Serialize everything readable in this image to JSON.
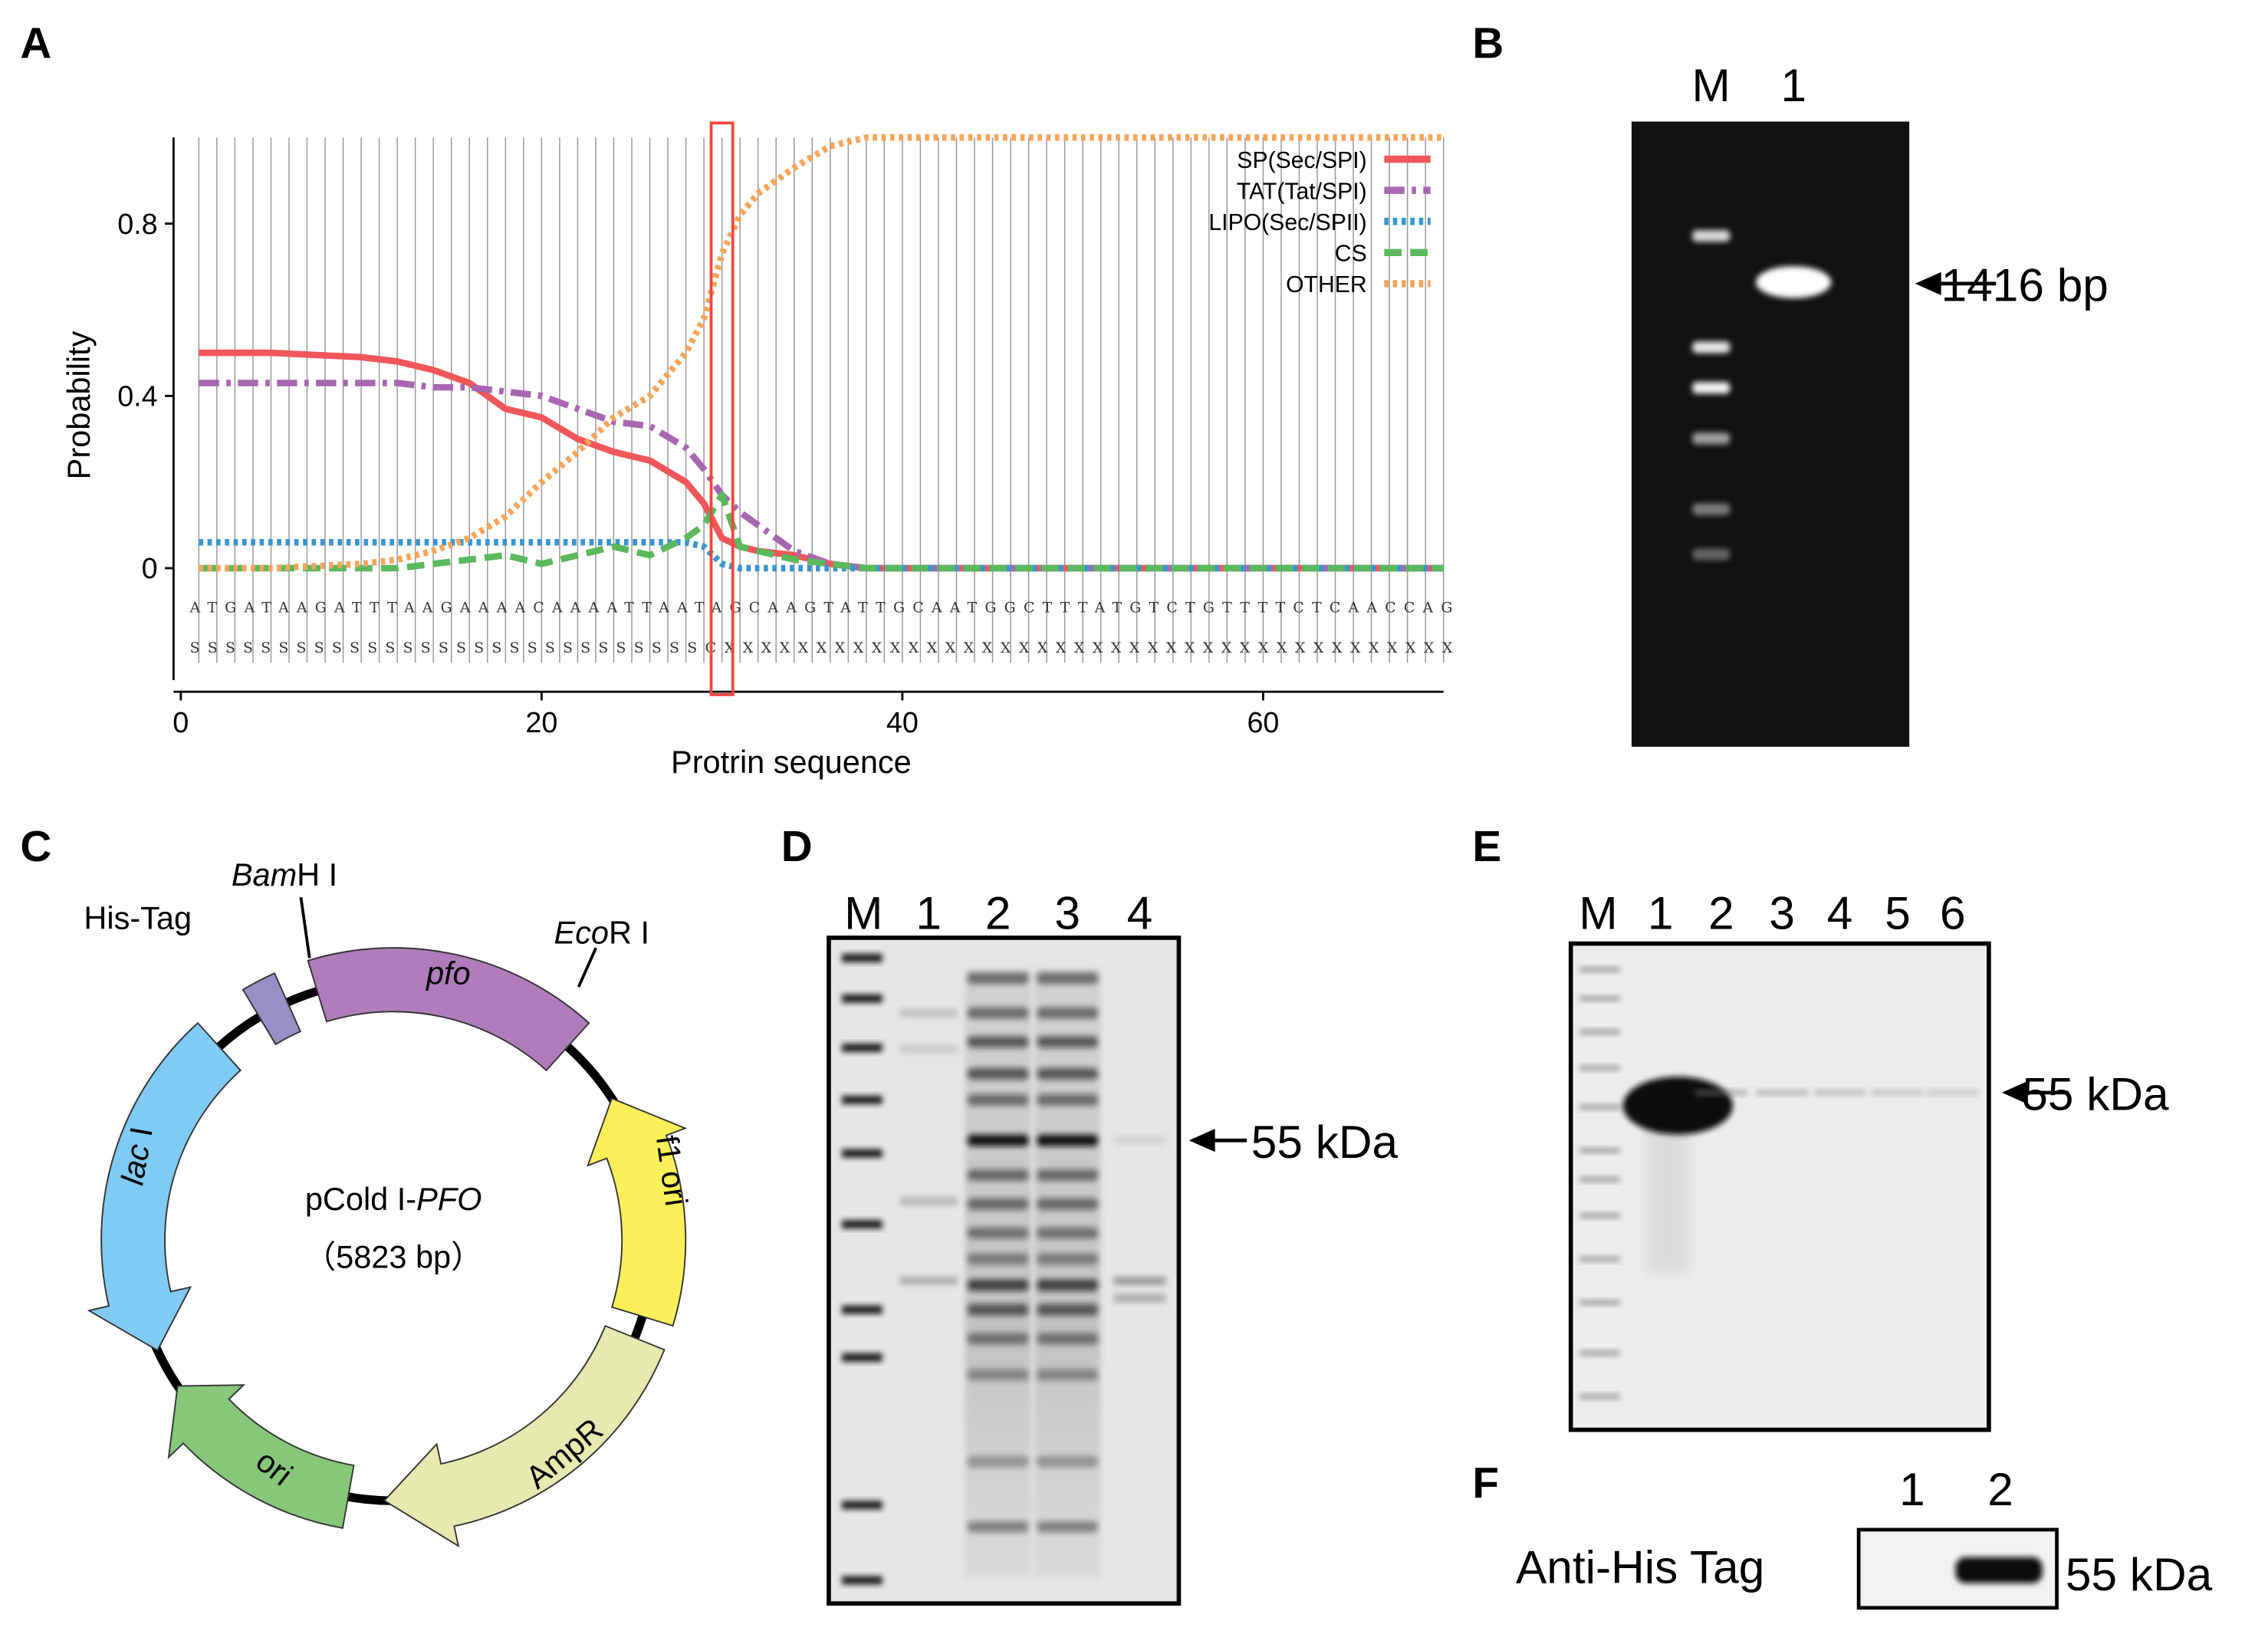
{
  "chart_data": {
    "type": "line",
    "panel_label": "A",
    "x_label": "Protrin sequence",
    "y_label": "Probability",
    "x": [
      1,
      5,
      10,
      12,
      14,
      16,
      18,
      20,
      22,
      24,
      26,
      28,
      29,
      30,
      31,
      32,
      34,
      36,
      38,
      40,
      50,
      60,
      70
    ],
    "series": [
      {
        "name": "SP(Sec/SPI)",
        "color": "#f0575a",
        "dash": "solid",
        "values": [
          0.5,
          0.5,
          0.49,
          0.48,
          0.46,
          0.43,
          0.37,
          0.35,
          0.3,
          0.27,
          0.25,
          0.2,
          0.15,
          0.07,
          0.05,
          0.04,
          0.03,
          0.01,
          0,
          0,
          0,
          0,
          0
        ]
      },
      {
        "name": "TAT(Tat/SPI)",
        "color": "#a767b0",
        "dash": "dashdot",
        "values": [
          0.43,
          0.43,
          0.43,
          0.43,
          0.42,
          0.42,
          0.41,
          0.4,
          0.37,
          0.34,
          0.33,
          0.28,
          0.23,
          0.17,
          0.13,
          0.1,
          0.04,
          0.01,
          0,
          0,
          0,
          0,
          0
        ]
      },
      {
        "name": "LIPO(Sec/SPII)",
        "color": "#3796d0",
        "dash": "dotted",
        "values": [
          0.06,
          0.06,
          0.06,
          0.06,
          0.06,
          0.06,
          0.06,
          0.06,
          0.06,
          0.06,
          0.06,
          0.06,
          0.05,
          0.01,
          0,
          0,
          0,
          0,
          0,
          0,
          0,
          0,
          0
        ]
      },
      {
        "name": "CS",
        "color": "#5bb85c",
        "dash": "dashed",
        "values": [
          0,
          0,
          0,
          0,
          0.01,
          0.02,
          0.03,
          0.01,
          0.03,
          0.05,
          0.03,
          0.07,
          0.1,
          0.17,
          0.05,
          0.04,
          0.02,
          0.01,
          0,
          0,
          0,
          0,
          0
        ]
      },
      {
        "name": "OTHER",
        "color": "#f5a55a",
        "dash": "dotted",
        "values": [
          0,
          0,
          0.01,
          0.02,
          0.04,
          0.07,
          0.12,
          0.2,
          0.27,
          0.35,
          0.4,
          0.5,
          0.58,
          0.73,
          0.82,
          0.87,
          0.93,
          0.98,
          1,
          1,
          1,
          1,
          1
        ]
      }
    ],
    "xlim": [
      0,
      70
    ],
    "ylim": [
      -0.26,
      1.0
    ],
    "xticks": [
      0,
      20,
      40,
      60
    ],
    "yticks": [
      0,
      0.4,
      0.8
    ],
    "legend": "upper right",
    "sequence": "ATGATAAGATTTAAGAAAACAAAATTAATAGCAAGTATTGCAATGGCTTTATGTCTGTTTTCTCAACCAG",
    "states": "SSSSSSSSSSSSSSSSSSSSSSSSSSSSSCXXXXXXXXXXXXXXXXXXXXXXXXXXXXXXXXXXXXXXXX"
  },
  "panel_b": {
    "label": "B",
    "lanes": [
      "M",
      "1"
    ],
    "annotation": "1416 bp"
  },
  "panel_c": {
    "label": "C",
    "plasmid_name": "pCold I-",
    "plasmid_name_italic": "PFO",
    "plasmid_size": "（5823 bp）",
    "sites": [
      {
        "italic": "Bam",
        "text": "H I"
      },
      {
        "italic": "Eco",
        "text": "R I"
      }
    ],
    "features": [
      "His-Tag",
      "pfo",
      "f1 ori",
      "AmpR",
      "ori"
    ],
    "lac": {
      "italic": "lac",
      "text": "I"
    }
  },
  "panel_d": {
    "label": "D",
    "lanes": [
      "M",
      "1",
      "2",
      "3",
      "4"
    ],
    "annotation": "55 kDa"
  },
  "panel_e": {
    "label": "E",
    "lanes": [
      "M",
      "1",
      "2",
      "3",
      "4",
      "5",
      "6"
    ],
    "annotation": "55 kDa"
  },
  "panel_f": {
    "label": "F",
    "lanes": [
      "1",
      "2"
    ],
    "row_label": "Anti-His Tag",
    "annotation": "55 kDa"
  }
}
